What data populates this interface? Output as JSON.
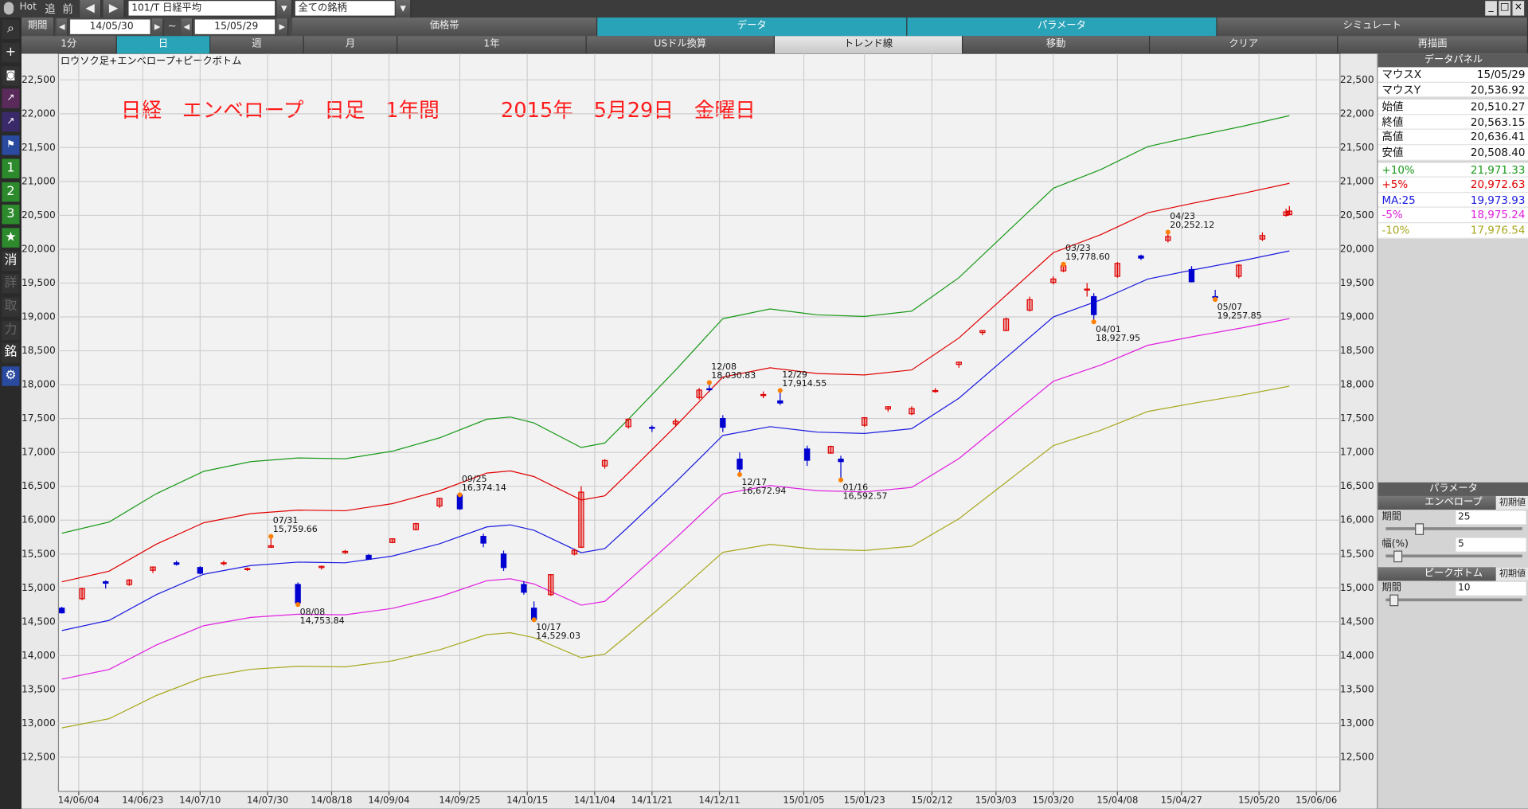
{
  "toolbar": {
    "hot": "Hot",
    "buttons": [
      "追",
      "前"
    ],
    "symbol": "101/T 日経平均",
    "universe": "全ての銘柄"
  },
  "period": {
    "label": "期間",
    "from": "14/05/30",
    "sep": "~",
    "to": "15/05/29"
  },
  "tabs": [
    "価格帯",
    "データ",
    "パラメータ",
    "シミュレート"
  ],
  "buttons": [
    "1分",
    "日",
    "週",
    "月",
    "1年",
    "USドル換算",
    "トレンド線",
    "移動",
    "クリア",
    "再描画"
  ],
  "side_tools": [
    "1",
    "2",
    "3",
    "消",
    "詳",
    "取",
    "力",
    "銘"
  ],
  "chart_data": [
    {
      "type": "candlestick",
      "title": "日経　エンベロープ　日足　1年間　　　2015年　5月29日　金曜日",
      "subtitle": "ロウソク足+エンベロープ+ピークボトム",
      "x": [
        "14/05/30",
        "14/06/05",
        "14/06/12",
        "14/06/19",
        "14/06/26",
        "14/07/03",
        "14/07/10",
        "14/07/17",
        "14/07/24",
        "14/07/31",
        "14/08/08",
        "14/08/15",
        "14/08/22",
        "14/08/29",
        "14/09/05",
        "14/09/12",
        "14/09/19",
        "14/09/25",
        "14/10/02",
        "14/10/08",
        "14/10/14",
        "14/10/17",
        "14/10/22",
        "14/10/29",
        "14/10/31",
        "14/11/07",
        "14/11/14",
        "14/11/21",
        "14/11/28",
        "14/12/05",
        "14/12/08",
        "14/12/12",
        "14/12/17",
        "14/12/24",
        "14/12/29",
        "15/01/06",
        "15/01/13",
        "15/01/16",
        "15/01/23",
        "15/01/30",
        "15/02/06",
        "15/02/13",
        "15/02/20",
        "15/02/27",
        "15/03/06",
        "15/03/13",
        "15/03/20",
        "15/03/23",
        "15/03/30",
        "15/04/01",
        "15/04/08",
        "15/04/15",
        "15/04/23",
        "15/04/30",
        "15/05/07",
        "15/05/14",
        "15/05/21",
        "15/05/28",
        "15/05/29"
      ],
      "open": [
        14700,
        14840,
        15090,
        15050,
        15260,
        15370,
        15300,
        15360,
        15280,
        15600,
        15050,
        15300,
        15520,
        15480,
        15670,
        15860,
        16210,
        16370,
        15760,
        15500,
        15050,
        14700,
        14900,
        15500,
        15600,
        16800,
        17380,
        17370,
        17420,
        17810,
        17940,
        17500,
        16900,
        17850,
        17760,
        17050,
        16990,
        16900,
        17400,
        17640,
        17570,
        17900,
        18300,
        18770,
        18800,
        19100,
        19510,
        19680,
        19400,
        19300,
        19600,
        19900,
        20130,
        19700,
        19300,
        19600,
        20150,
        20500,
        20510.27
      ],
      "high": [
        14720,
        15000,
        15110,
        15130,
        15310,
        15400,
        15320,
        15400,
        15300,
        15759.66,
        15080,
        15330,
        15560,
        15500,
        15730,
        15960,
        16330,
        16374.14,
        15800,
        15550,
        15100,
        14800,
        15200,
        15580,
        16500,
        16900,
        17500,
        17400,
        17500,
        17950,
        18030.83,
        17550,
        17000,
        17900,
        17914.55,
        17100,
        17100,
        16950,
        17520,
        17680,
        17680,
        17950,
        18340,
        18800,
        18990,
        19300,
        19600,
        19778.6,
        19500,
        19350,
        19810,
        19920,
        20252.12,
        19750,
        19400,
        19780,
        20250,
        20600,
        20636.41
      ],
      "low": [
        14620,
        14820,
        14990,
        15030,
        15220,
        15330,
        15200,
        15330,
        15250,
        15590,
        14753.84,
        15270,
        15500,
        15420,
        15660,
        15850,
        16180,
        16150,
        15600,
        15250,
        14900,
        14529.03,
        14880,
        15480,
        15590,
        16760,
        17350,
        17300,
        17380,
        17780,
        17900,
        17300,
        16672.94,
        17800,
        17700,
        16800,
        16980,
        16592.57,
        17380,
        17600,
        17550,
        17880,
        18250,
        18730,
        18790,
        19080,
        19480,
        19660,
        19300,
        18927.95,
        19580,
        19840,
        20100,
        19510,
        19257.85,
        19570,
        20120,
        20480,
        20508.4
      ],
      "close": [
        14632,
        14990,
        15069,
        15115,
        15308,
        15348,
        15216,
        15370,
        15284,
        15621,
        14778,
        15318,
        15539,
        15425,
        15724,
        15948,
        16321,
        16167,
        15661,
        15300,
        14936,
        14532,
        15195,
        15553,
        16413,
        16880,
        17490,
        17357,
        17460,
        17920,
        17935,
        17371,
        16755,
        17854,
        17730,
        16884,
        17088,
        16864,
        17512,
        17674,
        17648,
        17913,
        18332,
        18798,
        18971,
        19254,
        19560,
        19754,
        19411,
        19035,
        19790,
        19869,
        20187,
        19520,
        19291,
        19764,
        20202,
        20551,
        20563.15
      ],
      "up_color": "#e00000",
      "down_color": "#0000d0",
      "marker_color": "#ff8000",
      "peaks": [
        {
          "label": "07/31",
          "value": 15759.66,
          "value_label": "15,759.66"
        },
        {
          "label": "09/25",
          "value": 16374.14,
          "value_label": "16,374.14"
        },
        {
          "label": "12/08",
          "value": 18030.83,
          "value_label": "18,030.83"
        },
        {
          "label": "12/29",
          "value": 17914.55,
          "value_label": "17,914.55"
        },
        {
          "label": "03/23",
          "value": 19778.6,
          "value_label": "19,778.60"
        },
        {
          "label": "04/23",
          "value": 20252.12,
          "value_label": "20,252.12"
        }
      ],
      "bottoms": [
        {
          "label": "08/08",
          "value": 14753.84,
          "value_label": "14,753.84"
        },
        {
          "label": "10/17",
          "value": 14529.03,
          "value_label": "14,529.03"
        },
        {
          "label": "12/17",
          "value": 16672.94,
          "value_label": "16,672.94"
        },
        {
          "label": "01/16",
          "value": 16592.57,
          "value_label": "16,592.57"
        },
        {
          "label": "04/01",
          "value": 18927.95,
          "value_label": "18,927.95"
        },
        {
          "label": "05/07",
          "value": 19257.85,
          "value_label": "19,257.85"
        }
      ],
      "xlim": [
        "14/05/29",
        "15/06/13"
      ],
      "ylim": [
        11996,
        22888
      ],
      "xticks": [
        "14/06/04",
        "14/06/23",
        "14/07/10",
        "14/07/30",
        "14/08/18",
        "14/09/04",
        "14/09/25",
        "14/10/15",
        "14/11/04",
        "14/11/21",
        "14/12/11",
        "15/01/05",
        "15/01/23",
        "15/02/12",
        "15/03/03",
        "15/03/20",
        "15/04/08",
        "15/04/27",
        "15/05/20",
        "15/06/06"
      ],
      "yticks": [
        {
          "value": 12500,
          "label": "12,500"
        },
        {
          "value": 13000,
          "label": "13,000"
        },
        {
          "value": 13500,
          "label": "13,500"
        },
        {
          "value": 14000,
          "label": "14,000"
        },
        {
          "value": 14500,
          "label": "14,500"
        },
        {
          "value": 15000,
          "label": "15,000"
        },
        {
          "value": 15500,
          "label": "15,500"
        },
        {
          "value": 16000,
          "label": "16,000"
        },
        {
          "value": 16500,
          "label": "16,500"
        },
        {
          "value": 17000,
          "label": "17,000"
        },
        {
          "value": 17500,
          "label": "17,500"
        },
        {
          "value": 18000,
          "label": "18,000"
        },
        {
          "value": 18500,
          "label": "18,500"
        },
        {
          "value": 19000,
          "label": "19,000"
        },
        {
          "value": 19500,
          "label": "19,500"
        },
        {
          "value": 20000,
          "label": "20,000"
        },
        {
          "value": 20500,
          "label": "20,500"
        },
        {
          "value": 21000,
          "label": "21,000"
        },
        {
          "value": 21500,
          "label": "21,500"
        },
        {
          "value": 22000,
          "label": "22,000"
        },
        {
          "value": 22500,
          "label": "22,500"
        }
      ],
      "grid": true
    },
    {
      "type": "line",
      "x": [
        "14/05/30",
        "14/06/13",
        "14/06/27",
        "14/07/11",
        "14/07/25",
        "14/08/08",
        "14/08/22",
        "14/09/05",
        "14/09/19",
        "14/10/03",
        "14/10/10",
        "14/10/17",
        "14/10/31",
        "14/11/07",
        "14/11/14",
        "14/11/28",
        "14/12/12",
        "14/12/26",
        "15/01/09",
        "15/01/23",
        "15/02/06",
        "15/02/20",
        "15/03/06",
        "15/03/20",
        "15/04/03",
        "15/04/17",
        "15/05/01",
        "15/05/15",
        "15/05/29"
      ],
      "series": [
        {
          "name": "+10%",
          "color": "#1a9a1a",
          "values": [
            15807,
            15972,
            16390,
            16720,
            16863,
            16918,
            16907,
            17017,
            17215,
            17490,
            17523,
            17435,
            17072,
            17138,
            17490,
            18216,
            18975,
            19118,
            19030,
            19008,
            19085,
            19580,
            20240,
            20900,
            21175,
            21516,
            21670,
            21813,
            21971.33
          ]
        },
        {
          "name": "+5%",
          "color": "#e00000",
          "values": [
            15089,
            15246,
            15645,
            15960,
            16097,
            16149,
            16139,
            16244,
            16433,
            16695,
            16727,
            16643,
            16296,
            16359,
            16695,
            17388,
            18113,
            18249,
            18165,
            18144,
            18218,
            18690,
            19320,
            19950,
            20213,
            20538,
            20685,
            20822,
            20972.63
          ]
        },
        {
          "name": "MA:25",
          "color": "#1a1ae0",
          "values": [
            14370,
            14520,
            14900,
            15200,
            15330,
            15380,
            15370,
            15470,
            15650,
            15900,
            15930,
            15850,
            15520,
            15580,
            15900,
            16560,
            17250,
            17380,
            17300,
            17280,
            17350,
            17800,
            18400,
            19000,
            19250,
            19560,
            19700,
            19830,
            19973.93
          ]
        },
        {
          "name": "-5%",
          "color": "#e020e0",
          "values": [
            13652,
            13794,
            14155,
            14440,
            14564,
            14611,
            14602,
            14697,
            14868,
            15105,
            15134,
            15058,
            14744,
            14801,
            15105,
            15732,
            16388,
            16511,
            16435,
            16416,
            16483,
            16910,
            17480,
            18050,
            18288,
            18582,
            18715,
            18839,
            18975.24
          ]
        },
        {
          "name": "-10%",
          "color": "#a8a820",
          "values": [
            12933,
            13068,
            13410,
            13680,
            13797,
            13842,
            13833,
            13923,
            14085,
            14310,
            14337,
            14265,
            13968,
            14022,
            14310,
            14904,
            15525,
            15642,
            15570,
            15552,
            15615,
            16020,
            16560,
            17100,
            17325,
            17604,
            17730,
            17847,
            17976.54
          ]
        }
      ],
      "xlim": [
        "14/05/29",
        "15/06/13"
      ],
      "ylim": [
        11996,
        22888
      ]
    }
  ],
  "data_panel": {
    "title": "データパネル",
    "rows": [
      [
        "マウスX",
        "15/05/29"
      ],
      [
        "マウスY",
        "20,536.92"
      ],
      [
        "始値",
        "20,510.27"
      ],
      [
        "終値",
        "20,563.15"
      ],
      [
        "高値",
        "20,636.41"
      ],
      [
        "安値",
        "20,508.40"
      ],
      [
        "+10%",
        "21,971.33"
      ],
      [
        "+5%",
        "20,972.63"
      ],
      [
        "MA:25",
        "19,973.93"
      ],
      [
        "-5%",
        "18,975.24"
      ],
      [
        "-10%",
        "17,976.54"
      ]
    ]
  },
  "parameters": {
    "title": "パラメータ",
    "groups": [
      {
        "name": "エンベロープ",
        "reset": "初期値",
        "fields": [
          [
            "期間",
            "25"
          ],
          [
            "幅(%)",
            "5"
          ]
        ]
      },
      {
        "name": "ピークボトム",
        "reset": "初期値",
        "fields": [
          [
            "期間",
            "10"
          ]
        ]
      }
    ]
  }
}
